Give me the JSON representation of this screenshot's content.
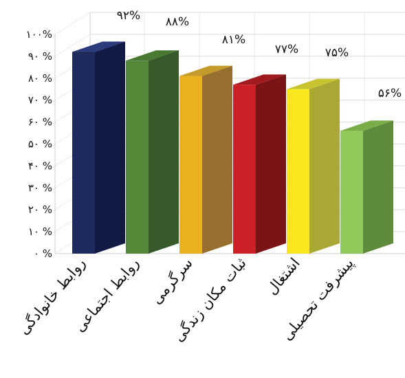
{
  "chart_data": {
    "type": "bar",
    "title": "",
    "xlabel": "",
    "ylabel": "",
    "categories": [
      "روابط خانوادگی",
      "روابط اجتماعی",
      "سرگرمی",
      "ثبات مکان زندگی",
      "اشتغال",
      "پیشرفت تحصیلی"
    ],
    "values": [
      92,
      88,
      81,
      77,
      75,
      56
    ],
    "data_labels": [
      "۹۲%",
      "۸۸%",
      "۸۱%",
      "۷۷%",
      "۷۵%",
      "۵۶%"
    ],
    "yticks": [
      0,
      10,
      20,
      30,
      40,
      50,
      60,
      70,
      80,
      90,
      100
    ],
    "ytick_labels": [
      "۰ %",
      "۱۰ %",
      "۲۰ %",
      "۳۰ %",
      "۴۰ %",
      "۵۰ %",
      "۶۰ %",
      "۷۰ %",
      "۸۰ %",
      "۹۰ %",
      "۱۰۰%"
    ],
    "ylim": [
      0,
      100
    ],
    "grid": true,
    "style": "3d",
    "colors": [
      {
        "front": "#1f2a5c",
        "side": "#111a45",
        "top": "#2a3a7a"
      },
      {
        "front": "#568a3a",
        "side": "#38592a",
        "top": "#4a7a32"
      },
      {
        "front": "#e9b020",
        "side": "#97702f",
        "top": "#c49a2a"
      },
      {
        "front": "#cc2026",
        "side": "#7a1416",
        "top": "#a01a1e"
      },
      {
        "front": "#f7e71c",
        "side": "#a9a835",
        "top": "#c8c430"
      },
      {
        "front": "#8fc95a",
        "side": "#5f8c3c",
        "top": "#78ad48"
      }
    ]
  }
}
